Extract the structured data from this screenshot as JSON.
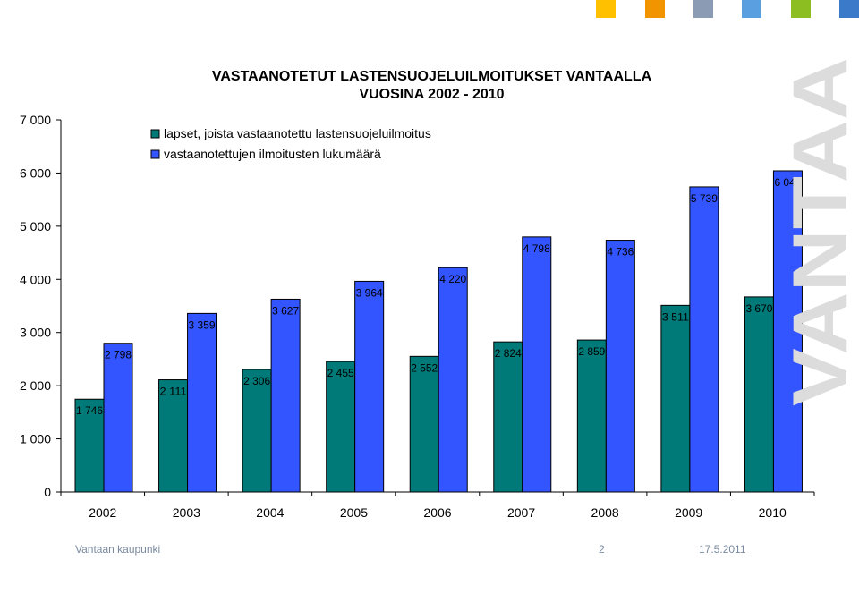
{
  "chart_data": {
    "type": "bar",
    "title": "VASTAANOTETUT LASTENSUOJELUILMOITUKSET VANTAALLA VUOSINA 2002 - 2010",
    "title_lines": [
      "VASTAANOTETUT LASTENSUOJELUILMOITUKSET VANTAALLA",
      "VUOSINA 2002 - 2010"
    ],
    "categories": [
      "2002",
      "2003",
      "2004",
      "2005",
      "2006",
      "2007",
      "2008",
      "2009",
      "2010"
    ],
    "series": [
      {
        "name": "lapset, joista vastaanotettu lastensuojeluilmoitus",
        "color": "#007a78",
        "values": [
          1746,
          2111,
          2306,
          2455,
          2552,
          2824,
          2859,
          3511,
          3670
        ],
        "labels": [
          "1 746",
          "2 111",
          "2 306",
          "2 455",
          "2 552",
          "2 824",
          "2 859",
          "3 511",
          "3 670"
        ]
      },
      {
        "name": "vastaanotettujen ilmoitusten lukumäärä",
        "color": "#3355ff",
        "values": [
          2798,
          3359,
          3627,
          3964,
          4220,
          4798,
          4736,
          5739,
          6041
        ],
        "labels": [
          "2 798",
          "3 359",
          "3 627",
          "3 964",
          "4 220",
          "4 798",
          "4 736",
          "5 739",
          "6 041"
        ]
      }
    ],
    "yticks": [
      {
        "value": 0,
        "label": "0"
      },
      {
        "value": 1000,
        "label": "1 000"
      },
      {
        "value": 2000,
        "label": "2 000"
      },
      {
        "value": 3000,
        "label": "3 000"
      },
      {
        "value": 4000,
        "label": "4 000"
      },
      {
        "value": 5000,
        "label": "5 000"
      },
      {
        "value": 6000,
        "label": "6 000"
      },
      {
        "value": 7000,
        "label": "7 000"
      }
    ],
    "ylim": [
      0,
      7000
    ],
    "xlabel": "",
    "ylabel": "",
    "grid": false,
    "legend": "top-left"
  },
  "footer": {
    "org": "Vantaan kaupunki",
    "page": "2",
    "date": "17.5.2011"
  },
  "watermark_text": "VANTAA",
  "decor_colors": [
    "#ffc000",
    "#f29400",
    "#8b9bb4",
    "#5aa0e0",
    "#8cbe22",
    "#3a7ac8"
  ]
}
